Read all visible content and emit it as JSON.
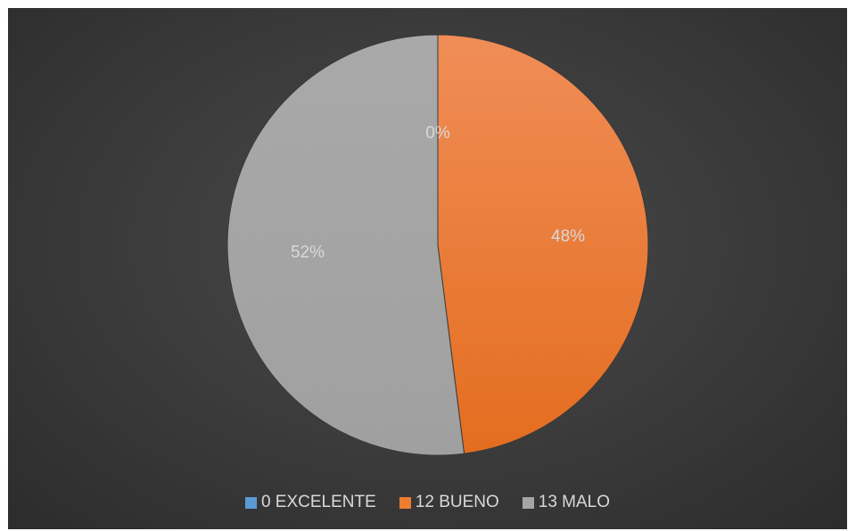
{
  "chart_data": {
    "type": "pie",
    "categories": [
      "0 EXCELENTE",
      "12 BUENO",
      "13 MALO"
    ],
    "values": [
      0,
      12,
      13
    ],
    "percent_labels": [
      "0%",
      "48%",
      "52%"
    ],
    "colors": [
      "#5b9bd5",
      "#ed7d31",
      "#a5a5a5"
    ],
    "legend_position": "bottom"
  }
}
